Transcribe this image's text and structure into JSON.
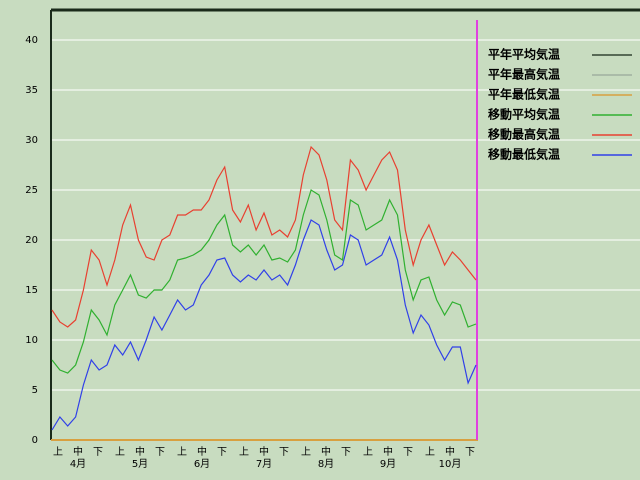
{
  "chart_data": {
    "type": "line",
    "x_tick_labels": [
      "上",
      "中",
      "下",
      "上",
      "中",
      "下",
      "上",
      "中",
      "下",
      "上",
      "中",
      "下",
      "上",
      "中",
      "下",
      "上",
      "中",
      "下",
      "上",
      "中",
      "下"
    ],
    "months": [
      "4月",
      "5月",
      "6月",
      "7月",
      "8月",
      "9月",
      "10月"
    ],
    "ylim": [
      0,
      43
    ],
    "yticks": [
      0,
      5,
      10,
      15,
      20,
      25,
      30,
      35,
      40
    ],
    "grid": true,
    "series": [
      {
        "name": "平年平均気温",
        "color": "#334433",
        "values": []
      },
      {
        "name": "平年最高気温",
        "color": "#a0b0a0",
        "values": []
      },
      {
        "name": "平年最低気温",
        "color": "#d8a040",
        "values": []
      },
      {
        "name": "移動平均気温",
        "color": "#30b030",
        "values": [
          8,
          7,
          6.7,
          7.5,
          9.8,
          13,
          12,
          10.5,
          13.5,
          15,
          16.5,
          14.5,
          14.2,
          15,
          15,
          16,
          18,
          18.2,
          18.5,
          19,
          20,
          21.5,
          22.5,
          19.5,
          18.8,
          19.5,
          18.5,
          19.5,
          18,
          18.2,
          17.8,
          19,
          22.5,
          25,
          24.5,
          22,
          18.5,
          18,
          24,
          23.5,
          21,
          21.5,
          22,
          24,
          22.5,
          17,
          14,
          16,
          16.3,
          14,
          12.5,
          13.8,
          13.5,
          11.3,
          11.6
        ]
      },
      {
        "name": "移動最高気温",
        "color": "#e84030",
        "values": [
          13,
          11.8,
          11.3,
          12,
          15,
          19,
          18,
          15.5,
          18,
          21.5,
          23.5,
          20,
          18.3,
          18,
          20,
          20.5,
          22.5,
          22.5,
          23,
          23,
          24,
          26,
          27.3,
          23,
          21.8,
          23.5,
          21,
          22.7,
          20.5,
          21,
          20.3,
          22,
          26.5,
          29.3,
          28.5,
          26,
          22,
          21,
          28,
          27,
          25,
          26.5,
          28,
          28.8,
          27,
          21,
          17.5,
          20,
          21.5,
          19.5,
          17.5,
          18.8,
          18,
          17,
          16
        ]
      },
      {
        "name": "移動最低気温",
        "color": "#3040e8",
        "values": [
          1,
          2.3,
          1.4,
          2.3,
          5.5,
          8,
          7,
          7.5,
          9.5,
          8.5,
          9.8,
          8,
          10,
          12.3,
          11,
          12.5,
          14,
          13,
          13.5,
          15.5,
          16.5,
          18,
          18.2,
          16.5,
          15.8,
          16.5,
          16,
          17,
          16,
          16.5,
          15.5,
          17.5,
          20,
          22,
          21.5,
          19,
          17,
          17.5,
          20.5,
          20,
          17.5,
          18,
          18.5,
          20.3,
          18,
          13.5,
          10.7,
          12.5,
          11.5,
          9.5,
          8,
          9.3,
          9.3,
          5.7,
          7.5
        ]
      }
    ]
  }
}
